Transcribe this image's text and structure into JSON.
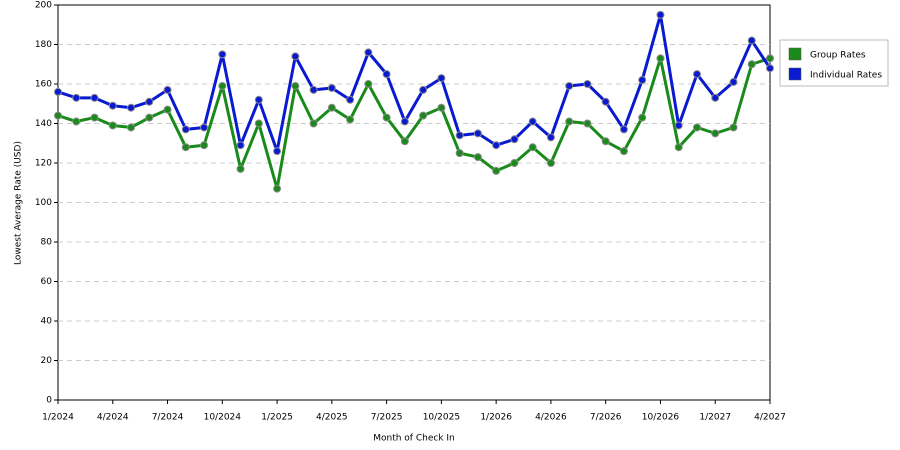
{
  "chart_data": {
    "type": "line",
    "x_label": "Month of Check In",
    "y_label": "Lowest Average Rate (USD)",
    "categories": [
      "1/2024",
      null,
      null,
      "4/2024",
      null,
      null,
      "7/2024",
      null,
      null,
      "10/2024",
      null,
      null,
      "1/2025",
      null,
      null,
      "4/2025",
      null,
      null,
      "7/2025",
      null,
      null,
      "10/2025",
      null,
      null,
      "1/2026",
      null,
      null,
      "4/2026",
      null,
      null,
      "7/2026",
      null,
      null,
      "10/2026",
      null,
      null,
      "1/2027",
      null,
      null,
      "4/2027"
    ],
    "series": [
      {
        "name": "Group Rates",
        "color": "#1a8a1a",
        "values": [
          144,
          141,
          143,
          139,
          138,
          143,
          147,
          128,
          129,
          159,
          117,
          140,
          107,
          159,
          140,
          148,
          142,
          160,
          143,
          131,
          144,
          148,
          125,
          123,
          116,
          120,
          128,
          120,
          141,
          140,
          131,
          126,
          143,
          173,
          128,
          138,
          135,
          138,
          170,
          173
        ]
      },
      {
        "name": "Individual Rates",
        "color": "#0a1ad0",
        "values": [
          156,
          153,
          153,
          149,
          148,
          151,
          157,
          137,
          138,
          175,
          129,
          152,
          126,
          174,
          157,
          158,
          152,
          176,
          165,
          141,
          157,
          163,
          134,
          135,
          129,
          132,
          141,
          133,
          159,
          160,
          151,
          137,
          162,
          195,
          139,
          165,
          153,
          161,
          182,
          168
        ]
      }
    ],
    "ylim": [
      0,
      200
    ],
    "yticks": [
      0,
      20,
      40,
      60,
      80,
      100,
      120,
      140,
      160,
      180,
      200
    ],
    "grid": true,
    "legend": "right"
  }
}
